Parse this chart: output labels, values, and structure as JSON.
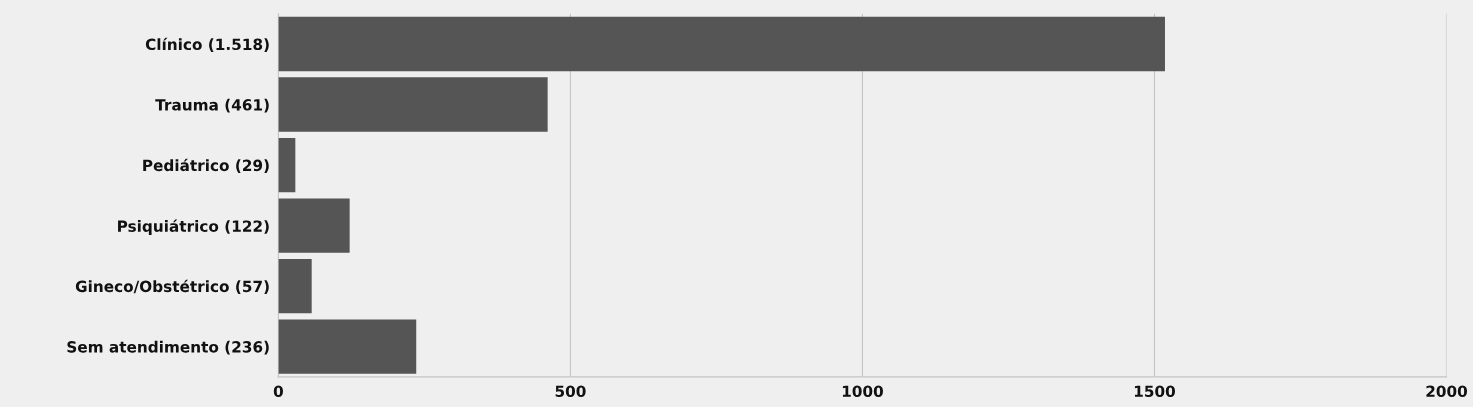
{
  "chart_data": {
    "type": "bar",
    "orientation": "horizontal",
    "categories": [
      "Clínico (1.518)",
      "Trauma (461)",
      "Pediátrico (29)",
      "Psiquiátrico (122)",
      "Gineco/Obstétrico (57)",
      "Sem atendimento (236)"
    ],
    "values": [
      1518,
      461,
      29,
      122,
      57,
      236
    ],
    "color": "#555555",
    "xlim": [
      0,
      2000
    ],
    "xticks": [
      0,
      500,
      1000,
      1500,
      2000
    ],
    "grid": "x",
    "legend": false
  }
}
